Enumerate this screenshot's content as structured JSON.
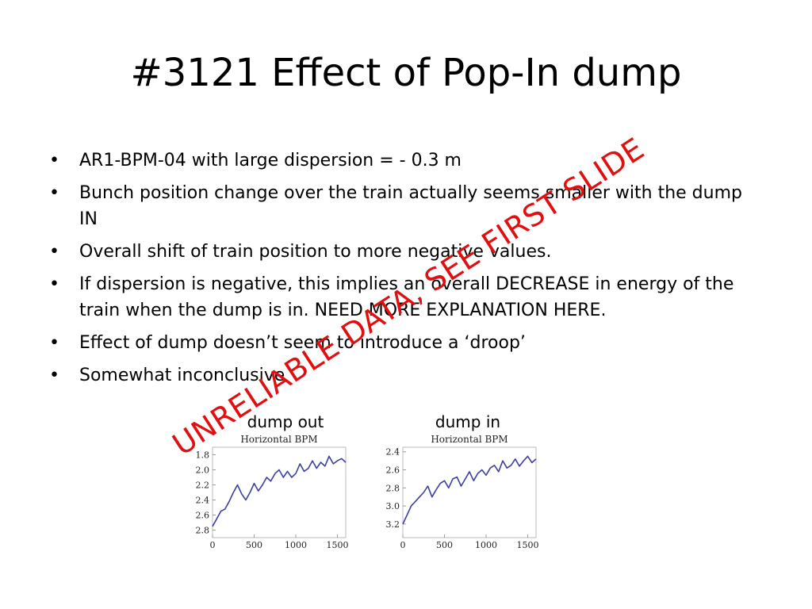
{
  "slide": {
    "title": "#3121 Effect of Pop-In dump",
    "bullet_glyph": "•",
    "bullets": [
      "AR1-BPM-04 with large dispersion = - 0.3 m",
      "Bunch position change over the train actually seems smaller with the dump IN",
      "Overall shift of train position to more negative values.",
      "If dispersion is negative, this implies an overall DECREASE in energy of the train when the dump is in. NEED MORE EXPLANATION HERE.",
      "Effect of dump doesn’t seem to introduce a ‘droop’",
      "Somewhat inconclusive"
    ],
    "watermark": "UNRELIABLE DATA, SEE FIRST SLIDE",
    "watermark_color": "#e01010"
  },
  "plots": [
    {
      "caption": "dump out",
      "title": "Horizontal BPM",
      "y_ticks": [
        "1.8",
        "2.0",
        "2.2",
        "2.4",
        "2.6",
        "2.8"
      ],
      "x_ticks": [
        "0",
        "500",
        "1000",
        "1500"
      ]
    },
    {
      "caption": "dump in",
      "title": "Horizontal BPM",
      "y_ticks": [
        "2.4",
        "2.6",
        "2.8",
        "3.0",
        "3.2"
      ],
      "x_ticks": [
        "0",
        "500",
        "1000",
        "1500"
      ]
    }
  ],
  "chart_data": [
    {
      "type": "line",
      "title": "Horizontal BPM",
      "xlabel": "",
      "ylabel": "",
      "xlim": [
        0,
        1600
      ],
      "ylim": [
        1.7,
        2.9
      ],
      "y_axis_inverted": true,
      "x_ticks": [
        0,
        500,
        1000,
        1500
      ],
      "y_ticks": [
        1.8,
        2.0,
        2.2,
        2.4,
        2.6,
        2.8
      ],
      "series": [
        {
          "color": "#3b3f9e",
          "x": [
            0,
            50,
            100,
            150,
            200,
            250,
            300,
            350,
            400,
            450,
            500,
            550,
            600,
            650,
            700,
            750,
            800,
            850,
            900,
            950,
            1000,
            1050,
            1100,
            1150,
            1200,
            1250,
            1300,
            1350,
            1400,
            1450,
            1500,
            1550,
            1600
          ],
          "values": [
            2.75,
            2.65,
            2.55,
            2.52,
            2.42,
            2.3,
            2.2,
            2.32,
            2.4,
            2.3,
            2.18,
            2.28,
            2.2,
            2.1,
            2.15,
            2.05,
            2.0,
            2.1,
            2.02,
            2.1,
            2.05,
            1.92,
            2.02,
            1.98,
            1.88,
            1.98,
            1.9,
            1.95,
            1.82,
            1.92,
            1.88,
            1.85,
            1.9
          ]
        }
      ]
    },
    {
      "type": "line",
      "title": "Horizontal BPM",
      "xlabel": "",
      "ylabel": "",
      "xlim": [
        0,
        1600
      ],
      "ylim": [
        2.35,
        3.35
      ],
      "y_axis_inverted": true,
      "x_ticks": [
        0,
        500,
        1000,
        1500
      ],
      "y_ticks": [
        2.4,
        2.6,
        2.8,
        3.0,
        3.2
      ],
      "series": [
        {
          "color": "#3b3f9e",
          "x": [
            0,
            50,
            100,
            150,
            200,
            250,
            300,
            350,
            400,
            450,
            500,
            550,
            600,
            650,
            700,
            750,
            800,
            850,
            900,
            950,
            1000,
            1050,
            1100,
            1150,
            1200,
            1250,
            1300,
            1350,
            1400,
            1450,
            1500,
            1550,
            1600
          ],
          "values": [
            3.2,
            3.1,
            3.0,
            2.95,
            2.9,
            2.85,
            2.78,
            2.9,
            2.82,
            2.75,
            2.72,
            2.8,
            2.7,
            2.68,
            2.78,
            2.7,
            2.62,
            2.72,
            2.64,
            2.6,
            2.66,
            2.58,
            2.55,
            2.62,
            2.5,
            2.58,
            2.55,
            2.48,
            2.56,
            2.5,
            2.45,
            2.52,
            2.48
          ]
        }
      ]
    }
  ]
}
